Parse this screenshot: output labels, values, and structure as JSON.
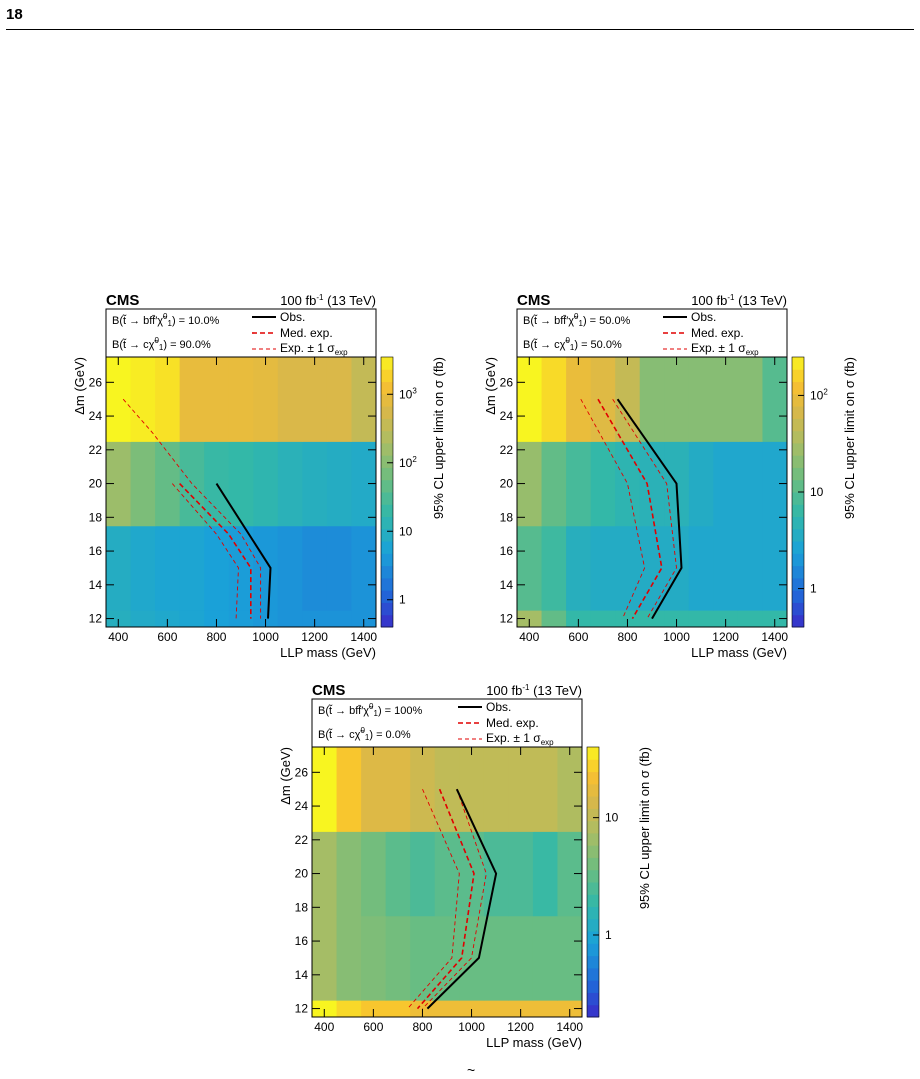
{
  "page": {
    "number": "18",
    "tilde": "~"
  },
  "colors": {
    "obs": "#000000",
    "exp": "#e00000"
  },
  "chart_data": [
    {
      "type": "heatmap",
      "experiment": "CMS",
      "luminosity": "100 fb",
      "lumi_sup": "-1",
      "energy": "(13 TeV)",
      "br_lines": [
        {
          "pre": "B(t̃ → bff̄′χ̃",
          "sup": "0",
          "sub": "1",
          "post": ") = 10.0%"
        },
        {
          "pre": "B(t̃ → cχ̃",
          "sup": "0",
          "sub": "1",
          "post": ") = 90.0%"
        }
      ],
      "legend": {
        "obs": "Obs.",
        "med": "Med. exp.",
        "exp_pre": "Exp. ± 1 σ",
        "exp_sub": "exp"
      },
      "xlabel": "LLP mass (GeV)",
      "ylabel": "Δm (GeV)",
      "xlim": [
        350,
        1450
      ],
      "ylim": [
        11.5,
        27.5
      ],
      "xticks": [
        400,
        600,
        800,
        1000,
        1200,
        1400
      ],
      "yticks": [
        12,
        14,
        16,
        18,
        20,
        22,
        24,
        26
      ],
      "zlabel": "95% CL upper limit on σ (fb)",
      "zlim": [
        0.4,
        3500
      ],
      "zticks": [
        {
          "v": 1,
          "pre": "1",
          "sup": ""
        },
        {
          "v": 10,
          "pre": "10",
          "sup": ""
        },
        {
          "v": 100,
          "pre": "10",
          "sup": "2"
        },
        {
          "v": 1000,
          "pre": "10",
          "sup": "3"
        }
      ],
      "x_edges": [
        350,
        450,
        550,
        650,
        750,
        850,
        950,
        1050,
        1150,
        1250,
        1350,
        1450
      ],
      "y_edges": [
        11.5,
        12.5,
        17.5,
        22.5,
        27.5
      ],
      "z": [
        [
          10,
          8,
          7,
          6,
          5,
          4.5,
          4,
          3.5,
          3.5,
          3.5,
          3.5
        ],
        [
          9,
          7,
          6,
          6,
          5,
          4.5,
          4,
          3.5,
          3,
          3,
          3.5
        ],
        [
          150,
          80,
          50,
          28,
          20,
          18,
          15,
          12,
          10,
          9,
          8
        ],
        [
          3500,
          3000,
          2500,
          900,
          900,
          900,
          800,
          600,
          600,
          600,
          350
        ]
      ],
      "obs": [
        [
          800,
          20
        ],
        [
          1020,
          15
        ],
        [
          1010,
          12
        ]
      ],
      "med": [
        [
          650,
          20
        ],
        [
          850,
          17
        ],
        [
          940,
          15
        ],
        [
          940,
          12
        ]
      ],
      "exp_up": [
        [
          420,
          25
        ],
        [
          540,
          23
        ],
        [
          700,
          20
        ],
        [
          900,
          17
        ],
        [
          980,
          15
        ],
        [
          980,
          12
        ]
      ],
      "exp_down": [
        [
          620,
          20
        ],
        [
          800,
          17
        ],
        [
          890,
          15
        ],
        [
          880,
          12
        ]
      ]
    },
    {
      "type": "heatmap",
      "experiment": "CMS",
      "luminosity": "100 fb",
      "lumi_sup": "-1",
      "energy": "(13 TeV)",
      "br_lines": [
        {
          "pre": "B(t̃ → bff̄′χ̃",
          "sup": "0",
          "sub": "1",
          "post": ") = 50.0%"
        },
        {
          "pre": "B(t̃ → cχ̃",
          "sup": "0",
          "sub": "1",
          "post": ") = 50.0%"
        }
      ],
      "legend": {
        "obs": "Obs.",
        "med": "Med. exp.",
        "exp_pre": "Exp. ± 1 σ",
        "exp_sub": "exp"
      },
      "xlabel": "LLP mass (GeV)",
      "ylabel": "Δm (GeV)",
      "xlim": [
        350,
        1450
      ],
      "ylim": [
        11.5,
        27.5
      ],
      "xticks": [
        400,
        600,
        800,
        1000,
        1200,
        1400
      ],
      "yticks": [
        12,
        14,
        16,
        18,
        20,
        22,
        24,
        26
      ],
      "zlabel": "95% CL upper limit on σ (fb)",
      "zlim": [
        0.4,
        250
      ],
      "zticks": [
        {
          "v": 1,
          "pre": "1",
          "sup": ""
        },
        {
          "v": 10,
          "pre": "10",
          "sup": ""
        },
        {
          "v": 100,
          "pre": "10",
          "sup": "2"
        }
      ],
      "x_edges": [
        350,
        450,
        550,
        650,
        750,
        850,
        950,
        1050,
        1150,
        1250,
        1350,
        1450
      ],
      "y_edges": [
        11.5,
        12.5,
        17.5,
        22.5,
        27.5
      ],
      "z": [
        [
          30,
          12,
          6,
          6,
          6,
          6,
          6,
          6,
          6,
          6,
          6
        ],
        [
          10,
          7,
          4,
          3.5,
          3.5,
          3.5,
          3.5,
          3,
          3,
          3,
          3
        ],
        [
          25,
          12,
          8,
          6,
          5,
          4.5,
          4.5,
          3.5,
          3,
          3,
          3
        ],
        [
          250,
          180,
          100,
          80,
          50,
          20,
          20,
          20,
          20,
          20,
          10
        ]
      ],
      "obs": [
        [
          760,
          25
        ],
        [
          1000,
          20
        ],
        [
          1020,
          15
        ],
        [
          900,
          12
        ]
      ],
      "med": [
        [
          680,
          25
        ],
        [
          880,
          20
        ],
        [
          940,
          15
        ],
        [
          820,
          12
        ]
      ],
      "exp_up": [
        [
          740,
          25
        ],
        [
          960,
          20
        ],
        [
          1000,
          15
        ],
        [
          880,
          12
        ]
      ],
      "exp_down": [
        [
          610,
          25
        ],
        [
          800,
          20
        ],
        [
          870,
          15
        ],
        [
          780,
          12
        ]
      ]
    },
    {
      "type": "heatmap",
      "experiment": "CMS",
      "luminosity": "100 fb",
      "lumi_sup": "-1",
      "energy": "(13 TeV)",
      "br_lines": [
        {
          "pre": "B(t̃ → bff̄′χ̃",
          "sup": "0",
          "sub": "1",
          "post": ") = 100%"
        },
        {
          "pre": "B(t̃ → cχ̃",
          "sup": "0",
          "sub": "1",
          "post": ") = 0.0%"
        }
      ],
      "legend": {
        "obs": "Obs.",
        "med": "Med. exp.",
        "exp_pre": "Exp. ± 1 σ",
        "exp_sub": "exp"
      },
      "xlabel": "LLP mass (GeV)",
      "ylabel": "Δm (GeV)",
      "xlim": [
        350,
        1450
      ],
      "ylim": [
        11.5,
        27.5
      ],
      "xticks": [
        400,
        600,
        800,
        1000,
        1200,
        1400
      ],
      "yticks": [
        12,
        14,
        16,
        18,
        20,
        22,
        24,
        26
      ],
      "zlabel": "95% CL upper limit on σ (fb)",
      "zlim": [
        0.2,
        40
      ],
      "zticks": [
        {
          "v": 1,
          "pre": "1",
          "sup": ""
        },
        {
          "v": 10,
          "pre": "10",
          "sup": ""
        }
      ],
      "x_edges": [
        350,
        450,
        550,
        650,
        750,
        850,
        950,
        1050,
        1150,
        1250,
        1350,
        1450
      ],
      "y_edges": [
        11.5,
        12.5,
        17.5,
        22.5,
        27.5
      ],
      "z": [
        [
          40,
          30,
          25,
          25,
          20,
          20,
          20,
          20,
          20,
          20,
          20
        ],
        [
          7,
          5,
          4.5,
          4,
          3.5,
          3.5,
          3.5,
          3.5,
          3.5,
          3.5,
          3.5
        ],
        [
          7,
          5,
          4,
          3,
          2.5,
          3,
          3,
          2.5,
          2.5,
          2,
          3
        ],
        [
          40,
          25,
          15,
          15,
          12,
          10,
          10,
          10,
          10,
          10,
          8
        ]
      ],
      "obs": [
        [
          940,
          25
        ],
        [
          1100,
          20
        ],
        [
          1030,
          15
        ],
        [
          820,
          12
        ]
      ],
      "med": [
        [
          870,
          25
        ],
        [
          1010,
          20
        ],
        [
          960,
          15
        ],
        [
          780,
          12
        ]
      ],
      "exp_up": [
        [
          940,
          25
        ],
        [
          1060,
          20
        ],
        [
          1000,
          15
        ],
        [
          800,
          12
        ]
      ],
      "exp_down": [
        [
          800,
          25
        ],
        [
          950,
          20
        ],
        [
          920,
          15
        ],
        [
          740,
          12
        ]
      ]
    }
  ]
}
